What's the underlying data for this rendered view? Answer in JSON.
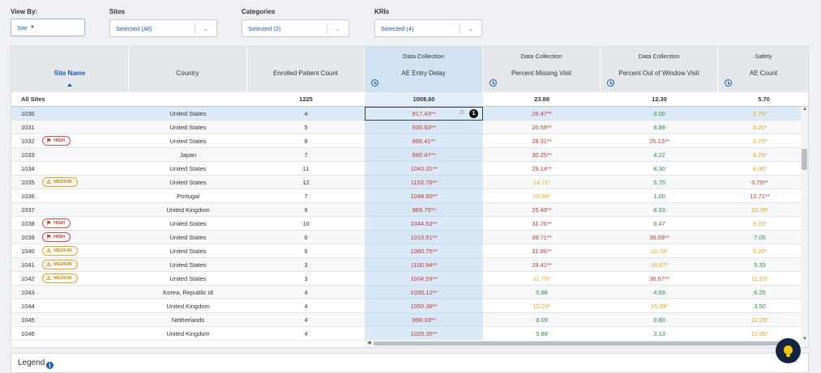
{
  "filters": {
    "view_by": {
      "label": "View By:",
      "value": "Site"
    },
    "sites": {
      "label": "Sites",
      "value": "Selected (All)"
    },
    "categories": {
      "label": "Categories",
      "value": "Selected (2)"
    },
    "kris": {
      "label": "KRIs",
      "value": "Selected (4)"
    }
  },
  "table": {
    "groups": {
      "ae_entry": "Data Collection",
      "missing_visit": "Data Collection",
      "out_of_window": "Data Collection",
      "ae_count": "Safety"
    },
    "headers": {
      "site_name": "Site Name",
      "country": "Country",
      "enrolled": "Enrolled Patient Count",
      "ae_entry": "AE Entry Delay",
      "missing_visit": "Percent Missing Visit",
      "out_of_window": "Percent Out of Window Visit",
      "ae_count": "AE Count"
    },
    "all_sites": {
      "name": "All Sites",
      "country": "",
      "enrolled": "1225",
      "ae_entry": "1008.60",
      "missing_visit": "23.88",
      "out_of_window": "12.30",
      "ae_count": "5.70"
    },
    "rows": [
      {
        "site": "1030",
        "badge": "",
        "country": "United States",
        "enrolled": "4",
        "ae": "817.43**",
        "ae_c": "red",
        "mv": "26.47**",
        "mv_c": "red",
        "ow": "3.00",
        "ow_c": "green",
        "ac": "1.75*",
        "ac_c": "orange",
        "selected": true
      },
      {
        "site": "1031",
        "badge": "",
        "country": "United States",
        "enrolled": "5",
        "ae": "935.63**",
        "ae_c": "red",
        "mv": "20.59**",
        "mv_c": "red",
        "ow": "8.89",
        "ow_c": "green",
        "ac": "3.20*",
        "ac_c": "orange"
      },
      {
        "site": "1032",
        "badge": "HIGH",
        "country": "United States",
        "enrolled": "8",
        "ae": "886.41**",
        "ae_c": "red",
        "mv": "28.31**",
        "mv_c": "red",
        "ow": "25.13**",
        "ow_c": "red",
        "ac": "2.75*",
        "ac_c": "orange"
      },
      {
        "site": "1033",
        "badge": "",
        "country": "Japan",
        "enrolled": "7",
        "ae": "990.47**",
        "ae_c": "red",
        "mv": "30.25**",
        "mv_c": "red",
        "ow": "4.22",
        "ow_c": "green",
        "ac": "9.29*",
        "ac_c": "orange"
      },
      {
        "site": "1034",
        "badge": "",
        "country": "United States",
        "enrolled": "11",
        "ae": "1043.31**",
        "ae_c": "red",
        "mv": "29.14**",
        "mv_c": "red",
        "ow": "8.30",
        "ow_c": "green",
        "ac": "8.00*",
        "ac_c": "orange"
      },
      {
        "site": "1035",
        "badge": "MEDIUM",
        "country": "United States",
        "enrolled": "12",
        "ae": "1153.78**",
        "ae_c": "red",
        "mv": "14.71*",
        "mv_c": "orange",
        "ow": "5.75",
        "ow_c": "green",
        "ac": "0.75**",
        "ac_c": "red"
      },
      {
        "site": "1036",
        "badge": "",
        "country": "Portugal",
        "enrolled": "7",
        "ae": "1048.60**",
        "ae_c": "red",
        "mv": "16.39*",
        "mv_c": "orange",
        "ow": "1.00",
        "ow_c": "green",
        "ac": "12.71**",
        "ac_c": "red"
      },
      {
        "site": "1037",
        "badge": "",
        "country": "United Kingdom",
        "enrolled": "9",
        "ae": "969.75**",
        "ae_c": "red",
        "mv": "25.49**",
        "mv_c": "red",
        "ow": "8.33",
        "ow_c": "green",
        "ac": "10.78*",
        "ac_c": "orange"
      },
      {
        "site": "1038",
        "badge": "HIGH",
        "country": "United States",
        "enrolled": "10",
        "ae": "1044.52**",
        "ae_c": "red",
        "mv": "31.76**",
        "mv_c": "red",
        "ow": "6.47",
        "ow_c": "green",
        "ac": "9.70*",
        "ac_c": "orange"
      },
      {
        "site": "1039",
        "badge": "HIGH",
        "country": "United States",
        "enrolled": "6",
        "ae": "1015.51**",
        "ae_c": "red",
        "mv": "39.71**",
        "mv_c": "red",
        "ow": "36.59**",
        "ow_c": "red",
        "ac": "7.00",
        "ac_c": "green"
      },
      {
        "site": "1040",
        "badge": "MEDIUM",
        "country": "United States",
        "enrolled": "6",
        "ae": "1060.75**",
        "ae_c": "red",
        "mv": "31.86**",
        "mv_c": "red",
        "ow": "10.79*",
        "ow_c": "orange",
        "ac": "9.33*",
        "ac_c": "orange"
      },
      {
        "site": "1041",
        "badge": "MEDIUM",
        "country": "United States",
        "enrolled": "3",
        "ae": "1100.94**",
        "ae_c": "red",
        "mv": "29.41**",
        "mv_c": "red",
        "ow": "16.67*",
        "ow_c": "orange",
        "ac": "5.33",
        "ac_c": "green"
      },
      {
        "site": "1042",
        "badge": "MEDIUM",
        "country": "United States",
        "enrolled": "3",
        "ae": "1004.55**",
        "ae_c": "red",
        "mv": "11.76*",
        "mv_c": "orange",
        "ow": "36.67**",
        "ow_c": "red",
        "ac": "11.33*",
        "ac_c": "orange"
      },
      {
        "site": "1043",
        "badge": "",
        "country": "Korea, Republic of",
        "enrolled": "4",
        "ae": "1035.12**",
        "ae_c": "red",
        "mv": "5.88",
        "mv_c": "green",
        "ow": "4.69",
        "ow_c": "green",
        "ac": "6.25",
        "ac_c": "green"
      },
      {
        "site": "1044",
        "badge": "",
        "country": "United Kingdom",
        "enrolled": "4",
        "ae": "1050.36**",
        "ae_c": "red",
        "mv": "10.29*",
        "mv_c": "orange",
        "ow": "16.39*",
        "ow_c": "orange",
        "ac": "3.50",
        "ac_c": "green"
      },
      {
        "site": "1045",
        "badge": "",
        "country": "Netherlands",
        "enrolled": "4",
        "ae": "998.33**",
        "ae_c": "red",
        "mv": "8.09",
        "mv_c": "green",
        "ow": "0.80",
        "ow_c": "green",
        "ac": "12.25*",
        "ac_c": "orange"
      },
      {
        "site": "1046",
        "badge": "",
        "country": "United Kingdom",
        "enrolled": "4",
        "ae": "1029.35**",
        "ae_c": "red",
        "mv": "5.88",
        "mv_c": "green",
        "ow": "3.13",
        "ow_c": "green",
        "ac": "12.00*",
        "ac_c": "orange"
      }
    ],
    "selected_cell_count": "1"
  },
  "legend": {
    "title": "Legend",
    "info": "i"
  },
  "colors": {
    "red": "#c0392b",
    "orange": "#e8a21a",
    "green": "#2e8b3a",
    "accent": "#1a5fb4"
  },
  "icons": {
    "history": "history-icon",
    "flag": "flag-icon",
    "warning": "warning-icon",
    "bulb": "lightbulb-icon"
  }
}
